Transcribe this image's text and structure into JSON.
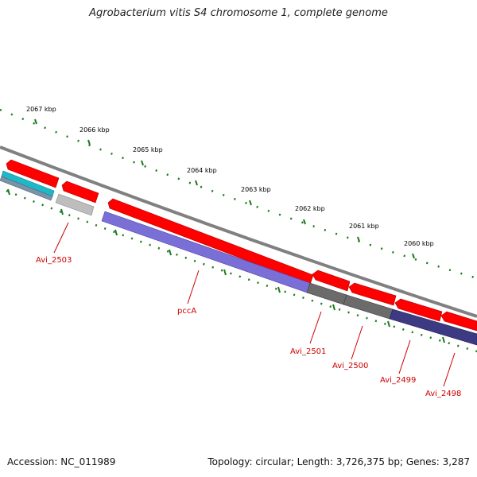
{
  "title": "Agrobacterium vitis S4 chromosome 1, complete genome",
  "footer": {
    "accession": "Accession: NC_011989",
    "summary": "Topology: circular; Length: 3,726,375 bp; Genes: 3,287"
  },
  "colors": {
    "backbone": "#808080",
    "tick": "#1a7a1a",
    "forward_cds": "#ff0000",
    "label": "#cc0000",
    "cyan_gene": "#1fb8c8",
    "purple_gene": "#7a6fd6",
    "dark_purple_gene": "#3c3a82",
    "gray_gene": "#6b6b6b",
    "light_gray_gene": "#bdbdbd"
  },
  "scale_labels": [
    "2067 kbp",
    "2066 kbp",
    "2065 kbp",
    "2064 kbp",
    "2063 kbp",
    "2062 kbp",
    "2061 kbp",
    "2060 kbp"
  ],
  "gene_labels": [
    "Avi_2503",
    "pccA",
    "Avi_2501",
    "Avi_2500",
    "Avi_2499",
    "Avi_2498"
  ]
}
